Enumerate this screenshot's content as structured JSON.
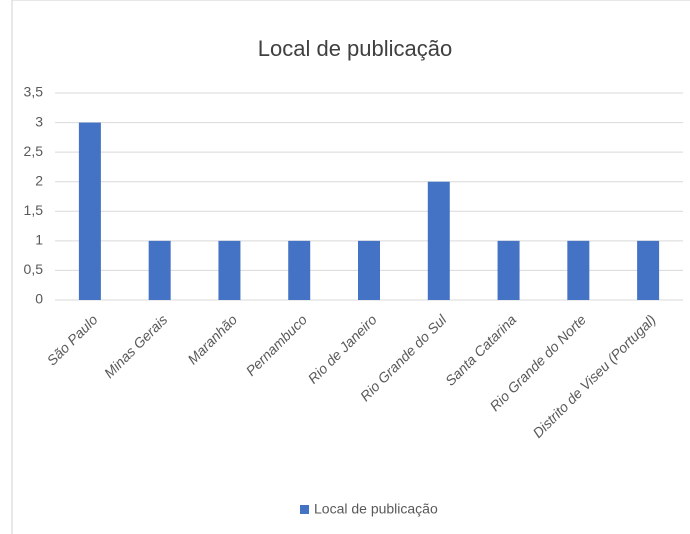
{
  "chart_data": {
    "type": "bar",
    "title": "Local de publicação",
    "categories": [
      "São Paulo",
      "Minas Gerais",
      "Maranhão",
      "Pernambuco",
      "Rio de Janeiro",
      "Rio Grande do Sul",
      "Santa Catarina",
      "Rio Grande do Norte",
      "Distrito de Viseu (Portugal)"
    ],
    "series": [
      {
        "name": "Local de publicação",
        "color": "#4472c4",
        "values": [
          3,
          1,
          1,
          1,
          1,
          2,
          1,
          1,
          1
        ]
      }
    ],
    "ylim": [
      0,
      3.5
    ],
    "yticks": [
      0,
      {
        "value": 0.5,
        "label": "0,5"
      },
      1,
      {
        "value": 1.5,
        "label": "1,5"
      },
      2,
      {
        "value": 2.5,
        "label": "2,5"
      },
      3,
      {
        "value": 3.5,
        "label": "3,5"
      }
    ],
    "grid": true,
    "legend": "bottom"
  }
}
